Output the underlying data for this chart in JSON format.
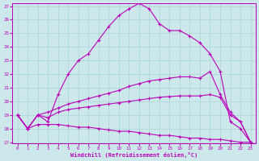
{
  "xlabel": "Windchill (Refroidissement éolien,°C)",
  "background_color": "#cce8ea",
  "grid_color": "#aad4d8",
  "line_color": "#bb00bb",
  "x_min": 0,
  "x_max": 23,
  "y_min": 17,
  "y_max": 27,
  "curve1_x": [
    0,
    1,
    2,
    3,
    4,
    5,
    6,
    7,
    8,
    9,
    10,
    11,
    12,
    13,
    14,
    15,
    16,
    17,
    18,
    19,
    20,
    21,
    22,
    23
  ],
  "curve1_y": [
    19.0,
    18.0,
    19.0,
    18.5,
    20.5,
    22.0,
    23.0,
    23.5,
    24.5,
    25.5,
    26.3,
    26.8,
    27.2,
    26.8,
    25.7,
    25.2,
    25.2,
    24.8,
    24.3,
    23.5,
    22.2,
    18.5,
    18.0,
    17.0
  ],
  "curve2_x": [
    0,
    1,
    2,
    3,
    4,
    5,
    6,
    7,
    8,
    9,
    10,
    11,
    12,
    13,
    14,
    15,
    16,
    17,
    18,
    19,
    20,
    21,
    22,
    23
  ],
  "curve2_y": [
    19.0,
    18.0,
    19.0,
    19.2,
    19.5,
    19.8,
    20.0,
    20.2,
    20.4,
    20.6,
    20.8,
    21.1,
    21.3,
    21.5,
    21.6,
    21.7,
    21.8,
    21.8,
    21.7,
    22.2,
    20.5,
    19.2,
    18.5,
    17.0
  ],
  "curve3_x": [
    0,
    1,
    2,
    3,
    4,
    5,
    6,
    7,
    8,
    9,
    10,
    11,
    12,
    13,
    14,
    15,
    16,
    17,
    18,
    19,
    20,
    21,
    22,
    23
  ],
  "curve3_y": [
    19.0,
    18.0,
    19.0,
    18.8,
    19.2,
    19.4,
    19.5,
    19.6,
    19.7,
    19.8,
    19.9,
    20.0,
    20.1,
    20.2,
    20.3,
    20.35,
    20.4,
    20.4,
    20.4,
    20.5,
    20.3,
    19.0,
    18.5,
    17.0
  ],
  "curve4_x": [
    0,
    1,
    2,
    3,
    4,
    5,
    6,
    7,
    8,
    9,
    10,
    11,
    12,
    13,
    14,
    15,
    16,
    17,
    18,
    19,
    20,
    21,
    22,
    23
  ],
  "curve4_y": [
    19.0,
    18.0,
    18.3,
    18.3,
    18.3,
    18.2,
    18.1,
    18.1,
    18.0,
    17.9,
    17.8,
    17.8,
    17.7,
    17.6,
    17.5,
    17.5,
    17.4,
    17.3,
    17.3,
    17.2,
    17.2,
    17.1,
    17.0,
    17.0
  ],
  "yticks": [
    17,
    18,
    19,
    20,
    21,
    22,
    23,
    24,
    25,
    26,
    27
  ],
  "xticks": [
    0,
    1,
    2,
    3,
    4,
    5,
    6,
    7,
    8,
    9,
    10,
    11,
    12,
    13,
    14,
    15,
    16,
    17,
    18,
    19,
    20,
    21,
    22,
    23
  ]
}
